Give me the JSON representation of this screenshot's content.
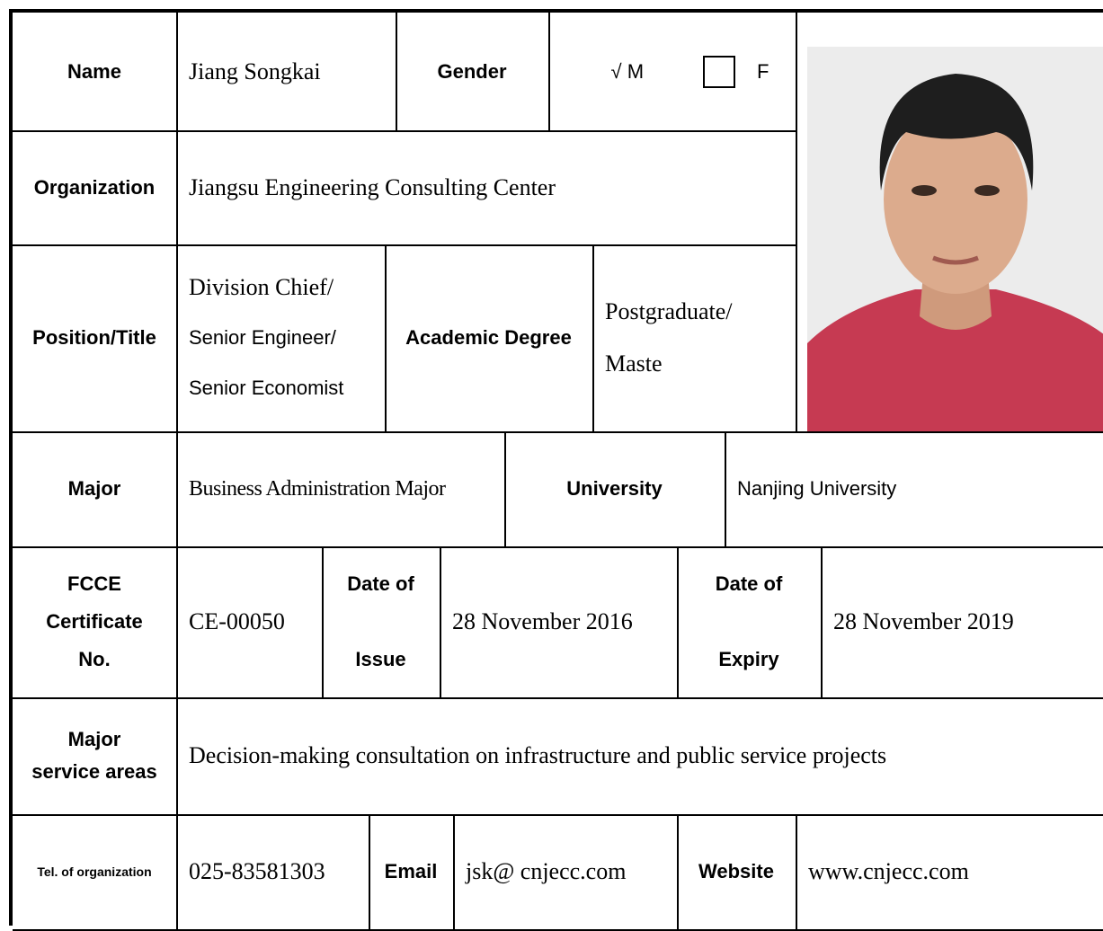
{
  "form": {
    "name": {
      "label": "Name",
      "value": "Jiang Songkai"
    },
    "gender": {
      "label": "Gender",
      "male": "√ M",
      "female": "F"
    },
    "organization": {
      "label": "Organization",
      "value": "Jiangsu Engineering Consulting Center"
    },
    "position": {
      "label": "Position/Title",
      "value": [
        "Division Chief/",
        "Senior Engineer/",
        "Senior Economist"
      ]
    },
    "degree": {
      "label": "Academic Degree",
      "value": [
        "Postgraduate/",
        "Maste"
      ]
    },
    "major": {
      "label": "Major",
      "value": "Business Administration Major"
    },
    "university": {
      "label": "University",
      "value": "Nanjing University"
    },
    "certificate": {
      "label": [
        "FCCE",
        "Certificate",
        "No."
      ],
      "value": "CE-00050"
    },
    "issue": {
      "label": [
        "Date of",
        "Issue"
      ],
      "value": "28 November 2016"
    },
    "expiry": {
      "label": [
        "Date of",
        "Expiry"
      ],
      "value": "28 November 2019"
    },
    "service": {
      "label": [
        "Major",
        "service areas"
      ],
      "value": "Decision-making consultation on infrastructure and public service projects"
    },
    "tel": {
      "label": "Tel. of organization",
      "value": "025-83581303"
    },
    "email": {
      "label": "Email",
      "value": "jsk@ cnjecc.com"
    },
    "website": {
      "label": "Website",
      "value": "www.cnjecc.com"
    }
  }
}
